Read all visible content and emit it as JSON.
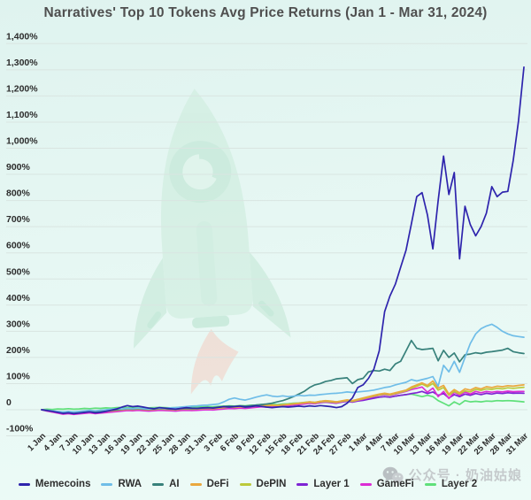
{
  "palette": {
    "background_top": "#dff3ef",
    "background_bottom": "#edfbf7",
    "gridline": "#d9e5e1",
    "title_color": "#4f4f4f",
    "axis_label_color": "#2c2c2c",
    "watermark_text_color": "#c5cacc",
    "rocket_body": "#c9ebd9",
    "rocket_detail": "#aadec4",
    "rocket_flame": "#f5cabe"
  },
  "watermark": {
    "icon": "wechat-icon",
    "text": "公众号 · 奶油姑娘"
  },
  "chart_data": {
    "type": "line",
    "title": "Narratives' Top 10 Tokens Avg Price Returns (Jan 1 - Mar 31, 2024)",
    "xlabel": "",
    "ylabel": "",
    "ylim": [
      -100,
      1400
    ],
    "grid": true,
    "legend_position": "bottom",
    "x_days": 91,
    "x_tick_step_days": 3,
    "x_tick_labels": [
      "1 Jan",
      "4 Jan",
      "7 Jan",
      "10 Jan",
      "13 Jan",
      "16 Jan",
      "19 Jan",
      "22 Jan",
      "25 Jan",
      "28 Jan",
      "31 Jan",
      "3 Feb",
      "6 Feb",
      "9 Feb",
      "12 Feb",
      "15 Feb",
      "18 Feb",
      "21 Feb",
      "24 Feb",
      "27 Feb",
      "1 Mar",
      "4 Mar",
      "7 Mar",
      "10 Mar",
      "13 Mar",
      "16 Mar",
      "19 Mar",
      "22 Mar",
      "25 Mar",
      "28 Mar",
      "31 Mar"
    ],
    "y_tick_labels": [
      "1,400%",
      "1,300%",
      "1,200%",
      "1,100%",
      "1,000%",
      "900%",
      "800%",
      "700%",
      "600%",
      "500%",
      "400%",
      "300%",
      "200%",
      "100%",
      "0",
      "-100%"
    ],
    "y_tick_values": [
      1400,
      1300,
      1200,
      1100,
      1000,
      900,
      800,
      700,
      600,
      500,
      400,
      300,
      200,
      100,
      0,
      -100
    ],
    "series": [
      {
        "name": "Memecoins",
        "color": "#2e24ad",
        "values": [
          0,
          -3,
          -6,
          -10,
          -14,
          -12,
          -15,
          -13,
          -10,
          -8,
          -12,
          -10,
          -6,
          -2,
          3,
          10,
          16,
          12,
          14,
          10,
          6,
          4,
          8,
          6,
          4,
          2,
          5,
          8,
          6,
          5,
          7,
          8,
          6,
          9,
          12,
          10,
          12,
          14,
          10,
          12,
          15,
          13,
          10,
          8,
          10,
          12,
          10,
          12,
          14,
          12,
          15,
          13,
          16,
          14,
          12,
          8,
          12,
          25,
          45,
          85,
          95,
          120,
          155,
          225,
          375,
          435,
          480,
          545,
          610,
          710,
          815,
          830,
          745,
          615,
          800,
          970,
          823,
          907,
          577,
          778,
          708,
          665,
          700,
          752,
          853,
          815,
          832,
          835,
          953,
          1105,
          1310
        ]
      },
      {
        "name": "RWA",
        "color": "#6fbde8",
        "values": [
          0,
          -2,
          -4,
          -6,
          -8,
          -6,
          -8,
          -6,
          -4,
          -2,
          -4,
          -2,
          0,
          2,
          4,
          3,
          5,
          4,
          6,
          4,
          3,
          5,
          6,
          5,
          7,
          8,
          10,
          12,
          14,
          15,
          17,
          18,
          20,
          22,
          30,
          40,
          45,
          40,
          37,
          42,
          48,
          53,
          57,
          52,
          50,
          53,
          50,
          52,
          55,
          53,
          56,
          55,
          58,
          60,
          62,
          63,
          65,
          68,
          66,
          68,
          70,
          72,
          75,
          80,
          85,
          88,
          95,
          100,
          105,
          115,
          110,
          115,
          120,
          127,
          90,
          170,
          145,
          185,
          143,
          200,
          253,
          290,
          310,
          320,
          327,
          315,
          300,
          290,
          283,
          280,
          277
        ]
      },
      {
        "name": "AI",
        "color": "#38817b",
        "values": [
          0,
          -2,
          -5,
          -8,
          -10,
          -8,
          -10,
          -9,
          -7,
          -5,
          -8,
          -6,
          -4,
          -2,
          0,
          2,
          4,
          3,
          5,
          3,
          2,
          3,
          5,
          4,
          3,
          2,
          4,
          5,
          4,
          5,
          6,
          7,
          8,
          10,
          12,
          14,
          13,
          15,
          14,
          16,
          18,
          20,
          22,
          25,
          30,
          35,
          42,
          50,
          60,
          70,
          85,
          95,
          100,
          108,
          112,
          118,
          120,
          122,
          100,
          115,
          120,
          145,
          150,
          148,
          155,
          150,
          175,
          185,
          225,
          265,
          235,
          230,
          232,
          235,
          187,
          227,
          200,
          217,
          183,
          210,
          213,
          218,
          215,
          220,
          222,
          225,
          228,
          235,
          222,
          218,
          215
        ]
      },
      {
        "name": "DeFi",
        "color": "#eaa83e",
        "values": [
          0,
          -2,
          -5,
          -8,
          -10,
          -8,
          -11,
          -9,
          -8,
          -6,
          -9,
          -7,
          -5,
          -3,
          -1,
          1,
          3,
          2,
          4,
          2,
          1,
          2,
          4,
          3,
          2,
          1,
          3,
          4,
          3,
          4,
          5,
          6,
          5,
          7,
          9,
          11,
          10,
          12,
          11,
          13,
          15,
          17,
          16,
          18,
          17,
          19,
          21,
          23,
          25,
          27,
          30,
          28,
          32,
          35,
          33,
          30,
          34,
          38,
          35,
          40,
          45,
          50,
          55,
          60,
          63,
          60,
          65,
          70,
          75,
          87,
          95,
          103,
          93,
          110,
          83,
          93,
          60,
          77,
          65,
          80,
          75,
          85,
          80,
          88,
          85,
          90,
          88,
          92,
          90,
          93,
          95
        ]
      },
      {
        "name": "DePIN",
        "color": "#bcc93b",
        "values": [
          0,
          -3,
          -6,
          -9,
          -12,
          -10,
          -12,
          -11,
          -9,
          -7,
          -10,
          -8,
          -6,
          -4,
          -2,
          0,
          2,
          1,
          3,
          1,
          0,
          1,
          3,
          2,
          1,
          0,
          2,
          3,
          2,
          3,
          4,
          5,
          4,
          6,
          8,
          10,
          9,
          11,
          10,
          12,
          14,
          16,
          15,
          17,
          16,
          18,
          20,
          22,
          24,
          26,
          28,
          26,
          30,
          32,
          30,
          28,
          32,
          35,
          32,
          37,
          42,
          47,
          52,
          57,
          60,
          57,
          62,
          67,
          72,
          82,
          90,
          98,
          88,
          100,
          75,
          85,
          55,
          70,
          60,
          72,
          68,
          78,
          74,
          80,
          78,
          82,
          80,
          84,
          82,
          84,
          86
        ]
      },
      {
        "name": "Layer 1",
        "color": "#7e23d4",
        "values": [
          0,
          -4,
          -8,
          -12,
          -15,
          -13,
          -16,
          -14,
          -12,
          -10,
          -13,
          -11,
          -9,
          -7,
          -5,
          -3,
          -1,
          -2,
          0,
          -2,
          -3,
          -2,
          0,
          -1,
          -2,
          -3,
          -1,
          0,
          -1,
          0,
          1,
          2,
          1,
          3,
          5,
          7,
          6,
          8,
          7,
          9,
          11,
          13,
          12,
          14,
          13,
          15,
          17,
          19,
          21,
          23,
          25,
          23,
          27,
          29,
          27,
          25,
          29,
          32,
          29,
          33,
          36,
          40,
          44,
          48,
          50,
          48,
          52,
          55,
          58,
          62,
          65,
          70,
          62,
          68,
          55,
          62,
          45,
          58,
          50,
          60,
          55,
          62,
          58,
          63,
          60,
          64,
          62,
          65,
          63,
          64,
          63
        ]
      },
      {
        "name": "GameFi",
        "color": "#dc2cd4",
        "values": [
          0,
          -5,
          -9,
          -13,
          -17,
          -15,
          -18,
          -16,
          -14,
          -12,
          -15,
          -13,
          -11,
          -9,
          -7,
          -5,
          -3,
          -4,
          -2,
          -4,
          -5,
          -4,
          -2,
          -3,
          -4,
          -5,
          -3,
          -2,
          -3,
          -2,
          -1,
          0,
          -1,
          1,
          3,
          5,
          4,
          6,
          5,
          7,
          9,
          11,
          10,
          12,
          11,
          13,
          15,
          18,
          20,
          22,
          25,
          23,
          28,
          30,
          28,
          26,
          30,
          34,
          31,
          36,
          40,
          45,
          50,
          55,
          58,
          55,
          60,
          65,
          70,
          77,
          82,
          87,
          67,
          83,
          50,
          70,
          43,
          67,
          55,
          68,
          60,
          70,
          65,
          70,
          67,
          70,
          68,
          71,
          69,
          70,
          70
        ]
      },
      {
        "name": "Layer 2",
        "color": "#5fe07a",
        "values": [
          0,
          2,
          1,
          3,
          2,
          4,
          2,
          3,
          5,
          4,
          6,
          5,
          7,
          6,
          8,
          9,
          8,
          10,
          9,
          8,
          7,
          8,
          9,
          8,
          7,
          8,
          9,
          10,
          9,
          10,
          11,
          12,
          11,
          13,
          14,
          15,
          14,
          16,
          15,
          17,
          18,
          20,
          19,
          21,
          20,
          22,
          23,
          25,
          26,
          28,
          30,
          28,
          32,
          34,
          32,
          30,
          33,
          36,
          33,
          36,
          38,
          42,
          45,
          48,
          50,
          48,
          52,
          55,
          58,
          60,
          55,
          50,
          55,
          50,
          35,
          25,
          15,
          30,
          20,
          35,
          30,
          32,
          30,
          33,
          32,
          35,
          34,
          35,
          34,
          32,
          30
        ]
      }
    ]
  }
}
